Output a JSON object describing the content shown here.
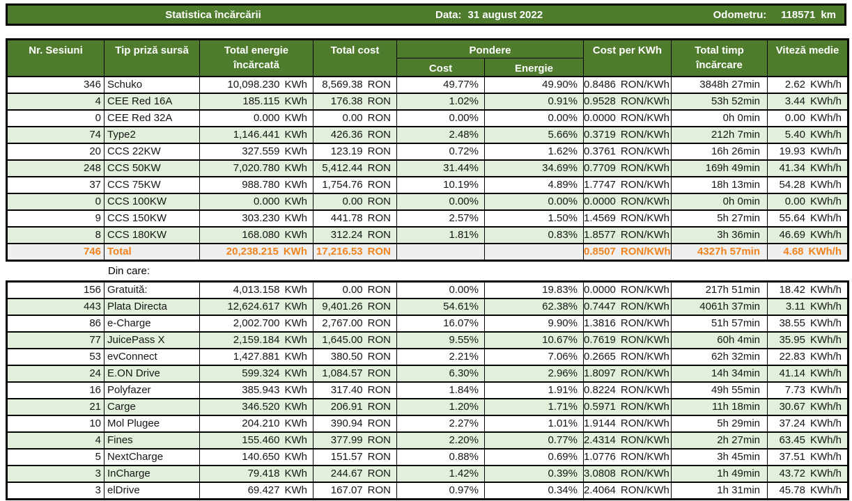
{
  "topbar": {
    "title": "Statistica încărcării",
    "date_label": "Data:",
    "date_value": "31 august 2022",
    "odometer_label": "Odometru:",
    "odometer_value": "118571",
    "odometer_unit": "km"
  },
  "headers": {
    "sessions": "Nr. Sesiuni",
    "type": "Tip priză sursă",
    "energy": "Total energie încărcată",
    "cost": "Total cost",
    "pondere": "Pondere",
    "pondere_cost": "Cost",
    "pondere_energy": "Energie",
    "cost_per_kwh": "Cost per KWh",
    "time": "Total timp încărcare",
    "speed": "Viteză medie"
  },
  "units": {
    "energy": "KWh",
    "cost": "RON",
    "cost_per_kwh": "RON/KWh",
    "speed": "KWh/h"
  },
  "section_label": "Din care:",
  "by_connector": {
    "rows": [
      [
        "346",
        "Schuko",
        "10,098.230",
        "8,569.38",
        "49.77%",
        "49.90%",
        "0.8486",
        "3848h 27min",
        "2.62"
      ],
      [
        "4",
        "CEE Red 16A",
        "185.115",
        "176.38",
        "1.02%",
        "0.91%",
        "0.9528",
        "53h 52min",
        "3.44"
      ],
      [
        "0",
        "CEE Red 32A",
        "0.000",
        "0.00",
        "0.00%",
        "0.00%",
        "0.0000",
        "0h 0min",
        "0.00"
      ],
      [
        "74",
        "Type2",
        "1,146.441",
        "426.36",
        "2.48%",
        "5.66%",
        "0.3719",
        "212h 7min",
        "5.40"
      ],
      [
        "20",
        "CCS 22KW",
        "327.559",
        "123.19",
        "0.72%",
        "1.62%",
        "0.3761",
        "16h 26min",
        "19.93"
      ],
      [
        "248",
        "CCS 50KW",
        "7,020.780",
        "5,412.44",
        "31.44%",
        "34.69%",
        "0.7709",
        "169h 49min",
        "41.34"
      ],
      [
        "37",
        "CCS 75KW",
        "988.780",
        "1,754.76",
        "10.19%",
        "4.89%",
        "1.7747",
        "18h 13min",
        "54.28"
      ],
      [
        "0",
        "CCS 100KW",
        "0.000",
        "0.00",
        "0.00%",
        "0.00%",
        "0.0000",
        "0h 0min",
        "0.00"
      ],
      [
        "9",
        "CCS 150KW",
        "303.230",
        "441.78",
        "2.57%",
        "1.50%",
        "1.4569",
        "5h 27min",
        "55.64"
      ],
      [
        "8",
        "CCS 180KW",
        "168.080",
        "312.24",
        "1.81%",
        "0.83%",
        "1.8577",
        "3h 36min",
        "46.69"
      ]
    ],
    "total": [
      "746",
      "Total",
      "20,238.215",
      "17,216.53",
      "",
      "",
      "0.8507",
      "4327h 57min",
      "4.68"
    ]
  },
  "by_network": {
    "rows": [
      [
        "156",
        "Gratuită:",
        "4,013.158",
        "0.00",
        "0.00%",
        "19.83%",
        "0.0000",
        "217h 51min",
        "18.42"
      ],
      [
        "443",
        "Plata Directa",
        "12,624.617",
        "9,401.26",
        "54.61%",
        "62.38%",
        "0.7447",
        "4061h 37min",
        "3.11"
      ],
      [
        "86",
        "e-Charge",
        "2,002.700",
        "2,767.00",
        "16.07%",
        "9.90%",
        "1.3816",
        "51h 57min",
        "38.55"
      ],
      [
        "77",
        "JuicePass X",
        "2,159.184",
        "1,645.00",
        "9.55%",
        "10.67%",
        "0.7619",
        "60h 4min",
        "35.95"
      ],
      [
        "53",
        "evConnect",
        "1,427.881",
        "380.50",
        "2.21%",
        "7.06%",
        "0.2665",
        "62h 32min",
        "22.83"
      ],
      [
        "24",
        "E.ON Drive",
        "599.324",
        "1,084.57",
        "6.30%",
        "2.96%",
        "1.8097",
        "14h 34min",
        "41.14"
      ],
      [
        "16",
        "Polyfazer",
        "385.943",
        "317.40",
        "1.84%",
        "1.91%",
        "0.8224",
        "49h 55min",
        "7.73"
      ],
      [
        "21",
        "Carge",
        "346.520",
        "206.91",
        "1.20%",
        "1.71%",
        "0.5971",
        "11h 18min",
        "30.67"
      ],
      [
        "10",
        "Mol Plugee",
        "204.210",
        "390.94",
        "2.27%",
        "1.01%",
        "1.9144",
        "5h 29min",
        "37.24"
      ],
      [
        "4",
        "Fines",
        "155.460",
        "377.99",
        "2.20%",
        "0.77%",
        "2.4314",
        "2h 27min",
        "63.45"
      ],
      [
        "5",
        "NextCharge",
        "140.650",
        "151.57",
        "0.88%",
        "0.69%",
        "1.0776",
        "3h 45min",
        "37.51"
      ],
      [
        "3",
        "InCharge",
        "79.418",
        "244.67",
        "1.42%",
        "0.39%",
        "3.0808",
        "1h 49min",
        "43.72"
      ],
      [
        "3",
        "elDrive",
        "69.427",
        "167.07",
        "0.97%",
        "0.34%",
        "2.4064",
        "1h 31min",
        "45.78"
      ]
    ]
  },
  "colors": {
    "header_green": "#4e7b2c",
    "row_alt_green": "#e2efda",
    "total_row_bg": "#efefef",
    "total_text_orange": "#f0831e",
    "border": "#000000"
  }
}
